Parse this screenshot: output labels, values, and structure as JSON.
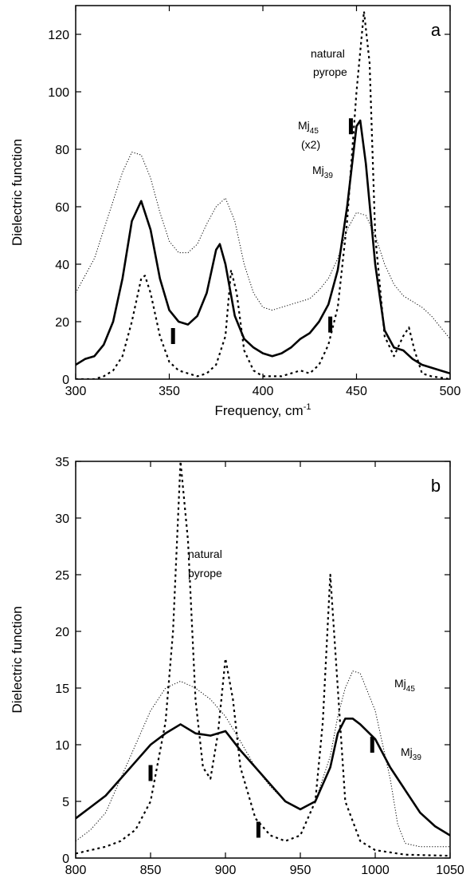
{
  "chart_data": [
    {
      "type": "line",
      "panel_label": "a",
      "ylabel": "Dielectric function",
      "xlabel": {
        "text": "Frequency, cm",
        "sup": "-1"
      },
      "xlim": [
        300,
        500
      ],
      "xticks": [
        300,
        350,
        400,
        450,
        500
      ],
      "ylim": [
        0,
        130
      ],
      "yticks": [
        0,
        20,
        40,
        60,
        80,
        100,
        120
      ],
      "annotations": [
        {
          "text": "natural"
        },
        {
          "text": "pyrope"
        },
        {
          "text": "Mj",
          "sub": "45"
        },
        {
          "text": "(x2)"
        },
        {
          "text": "Mj",
          "sub": "39"
        }
      ],
      "series": [
        {
          "color": "#000000",
          "style": "solid",
          "width": 2.6,
          "x": [
            300,
            305,
            310,
            315,
            320,
            325,
            330,
            335,
            340,
            345,
            350,
            355,
            360,
            365,
            370,
            375,
            377,
            380,
            385,
            390,
            395,
            400,
            405,
            410,
            415,
            420,
            425,
            430,
            435,
            440,
            445,
            450,
            452,
            455,
            460,
            465,
            470,
            475,
            480,
            485,
            490,
            495,
            500
          ],
          "values": [
            5,
            7,
            8,
            12,
            20,
            35,
            55,
            62,
            52,
            35,
            24,
            20,
            19,
            22,
            30,
            45,
            47,
            40,
            22,
            14,
            11,
            9,
            8,
            9,
            11,
            14,
            16,
            20,
            26,
            38,
            60,
            88,
            90,
            75,
            40,
            17,
            11,
            10,
            7,
            5,
            4,
            3,
            2
          ]
        },
        {
          "color": "#000000",
          "style": "dotted",
          "width": 1,
          "x": [
            300,
            305,
            310,
            315,
            320,
            325,
            330,
            335,
            340,
            345,
            350,
            355,
            360,
            365,
            370,
            375,
            380,
            385,
            390,
            395,
            400,
            405,
            410,
            415,
            420,
            425,
            430,
            435,
            440,
            445,
            450,
            455,
            460,
            465,
            470,
            475,
            480,
            485,
            490,
            495,
            500
          ],
          "values": [
            30,
            36,
            42,
            52,
            62,
            72,
            79,
            78,
            70,
            58,
            48,
            44,
            44,
            47,
            54,
            60,
            63,
            55,
            40,
            30,
            25,
            24,
            25,
            26,
            27,
            28,
            31,
            35,
            42,
            52,
            58,
            57,
            50,
            40,
            33,
            29,
            27,
            25,
            22,
            18,
            14
          ]
        },
        {
          "color": "#000000",
          "style": "dashed",
          "width": 2.2,
          "x": [
            300,
            310,
            315,
            320,
            325,
            330,
            335,
            337,
            340,
            345,
            350,
            355,
            360,
            365,
            370,
            375,
            380,
            383,
            386,
            390,
            395,
            400,
            410,
            420,
            425,
            430,
            435,
            440,
            445,
            450,
            454,
            457,
            460,
            465,
            470,
            475,
            478,
            481,
            485,
            490,
            500
          ],
          "values": [
            0,
            0,
            1,
            3,
            8,
            20,
            35,
            36,
            30,
            15,
            6,
            3,
            2,
            1,
            2,
            5,
            15,
            38,
            30,
            10,
            3,
            1,
            1,
            3,
            2,
            5,
            12,
            25,
            55,
            100,
            128,
            110,
            50,
            15,
            8,
            15,
            18,
            10,
            2,
            1,
            0
          ]
        }
      ],
      "markers": {
        "x": [
          352,
          436,
          447
        ],
        "y": [
          15,
          19,
          88
        ]
      }
    },
    {
      "type": "line",
      "panel_label": "b",
      "ylabel": "Dielectric function",
      "xlabel": {
        "text": "Frequency, cm",
        "sup": "-1"
      },
      "xlim": [
        800,
        1050
      ],
      "xticks": [
        800,
        850,
        900,
        950,
        1000,
        1050
      ],
      "ylim": [
        0,
        35
      ],
      "yticks": [
        0,
        5,
        10,
        15,
        20,
        25,
        30,
        35
      ],
      "annotations": [
        {
          "text": "natural"
        },
        {
          "text": "pyrope"
        },
        {
          "text": "Mj",
          "sub": "45"
        },
        {
          "text": "Mj",
          "sub": "39"
        }
      ],
      "series": [
        {
          "color": "#000000",
          "style": "solid",
          "width": 2.6,
          "x": [
            800,
            810,
            820,
            830,
            840,
            850,
            860,
            870,
            880,
            890,
            900,
            910,
            920,
            930,
            940,
            950,
            960,
            970,
            975,
            980,
            985,
            990,
            1000,
            1010,
            1020,
            1030,
            1040,
            1050
          ],
          "values": [
            3.5,
            4.5,
            5.5,
            7,
            8.5,
            10,
            11,
            11.8,
            11,
            10.8,
            11.2,
            9.5,
            8,
            6.5,
            5,
            4.3,
            5,
            8,
            11,
            12.3,
            12.3,
            11.8,
            10.5,
            8,
            6,
            4,
            2.8,
            2
          ]
        },
        {
          "color": "#000000",
          "style": "dotted",
          "width": 1,
          "x": [
            800,
            810,
            820,
            830,
            840,
            850,
            860,
            870,
            880,
            890,
            900,
            910,
            920,
            930,
            940,
            950,
            960,
            970,
            975,
            980,
            985,
            990,
            1000,
            1010,
            1015,
            1020,
            1030,
            1050
          ],
          "values": [
            1.5,
            2.5,
            4,
            7,
            10,
            13,
            15,
            15.6,
            15,
            14,
            12.5,
            10.3,
            8,
            6.3,
            5,
            4.3,
            5,
            9,
            12.5,
            15,
            16.5,
            16.3,
            13,
            7,
            3,
            1.3,
            1,
            1
          ]
        },
        {
          "color": "#000000",
          "style": "dashed",
          "width": 2.2,
          "x": [
            800,
            820,
            830,
            840,
            850,
            860,
            865,
            870,
            875,
            880,
            885,
            890,
            895,
            900,
            905,
            910,
            920,
            930,
            940,
            950,
            960,
            965,
            970,
            975,
            980,
            990,
            1000,
            1010,
            1020,
            1050
          ],
          "values": [
            0.4,
            1,
            1.5,
            2.5,
            5,
            12,
            20,
            35,
            28,
            14,
            8,
            7,
            11,
            17.6,
            14,
            8,
            3.5,
            2,
            1.5,
            2,
            5,
            12,
            25,
            15,
            5,
            1.5,
            0.7,
            0.5,
            0.3,
            0.2
          ]
        }
      ],
      "markers": {
        "x": [
          850,
          922,
          998
        ],
        "y": [
          7.5,
          2.5,
          10
        ]
      }
    }
  ]
}
